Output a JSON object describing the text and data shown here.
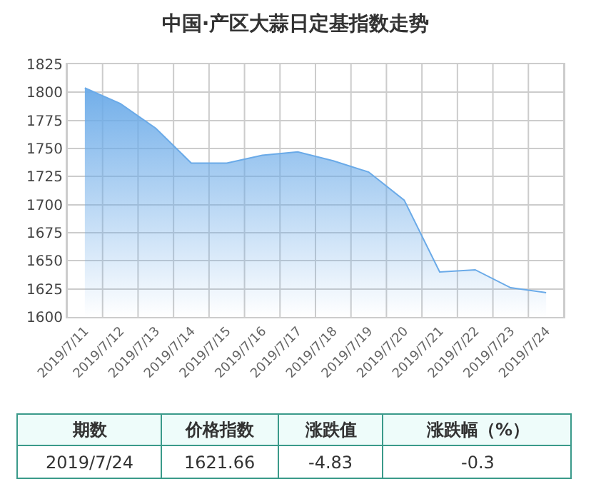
{
  "chart_data": {
    "type": "area",
    "title": "中国·产区大蒜日定基指数走势",
    "categories": [
      "2019/7/11",
      "2019/7/12",
      "2019/7/13",
      "2019/7/14",
      "2019/7/15",
      "2019/7/16",
      "2019/7/17",
      "2019/7/18",
      "2019/7/19",
      "2019/7/20",
      "2019/7/21",
      "2019/7/22",
      "2019/7/23",
      "2019/7/24"
    ],
    "series": [
      {
        "color": "#6aaae8",
        "values": [
          1804,
          1790,
          1768,
          1737,
          1737,
          1744,
          1747,
          1739,
          1729,
          1704,
          1640,
          1642,
          1626,
          1621.66
        ]
      }
    ],
    "ylim": [
      1600,
      1825
    ],
    "yticks": [
      1600,
      1625,
      1650,
      1675,
      1700,
      1725,
      1750,
      1775,
      1800,
      1825
    ],
    "grid": true,
    "annotations": [
      "期数",
      "价格指数",
      "涨跌值",
      "涨跌幅（%）",
      "2019/7/24",
      "1621.66",
      "-4.83",
      "-0.3"
    ]
  }
}
